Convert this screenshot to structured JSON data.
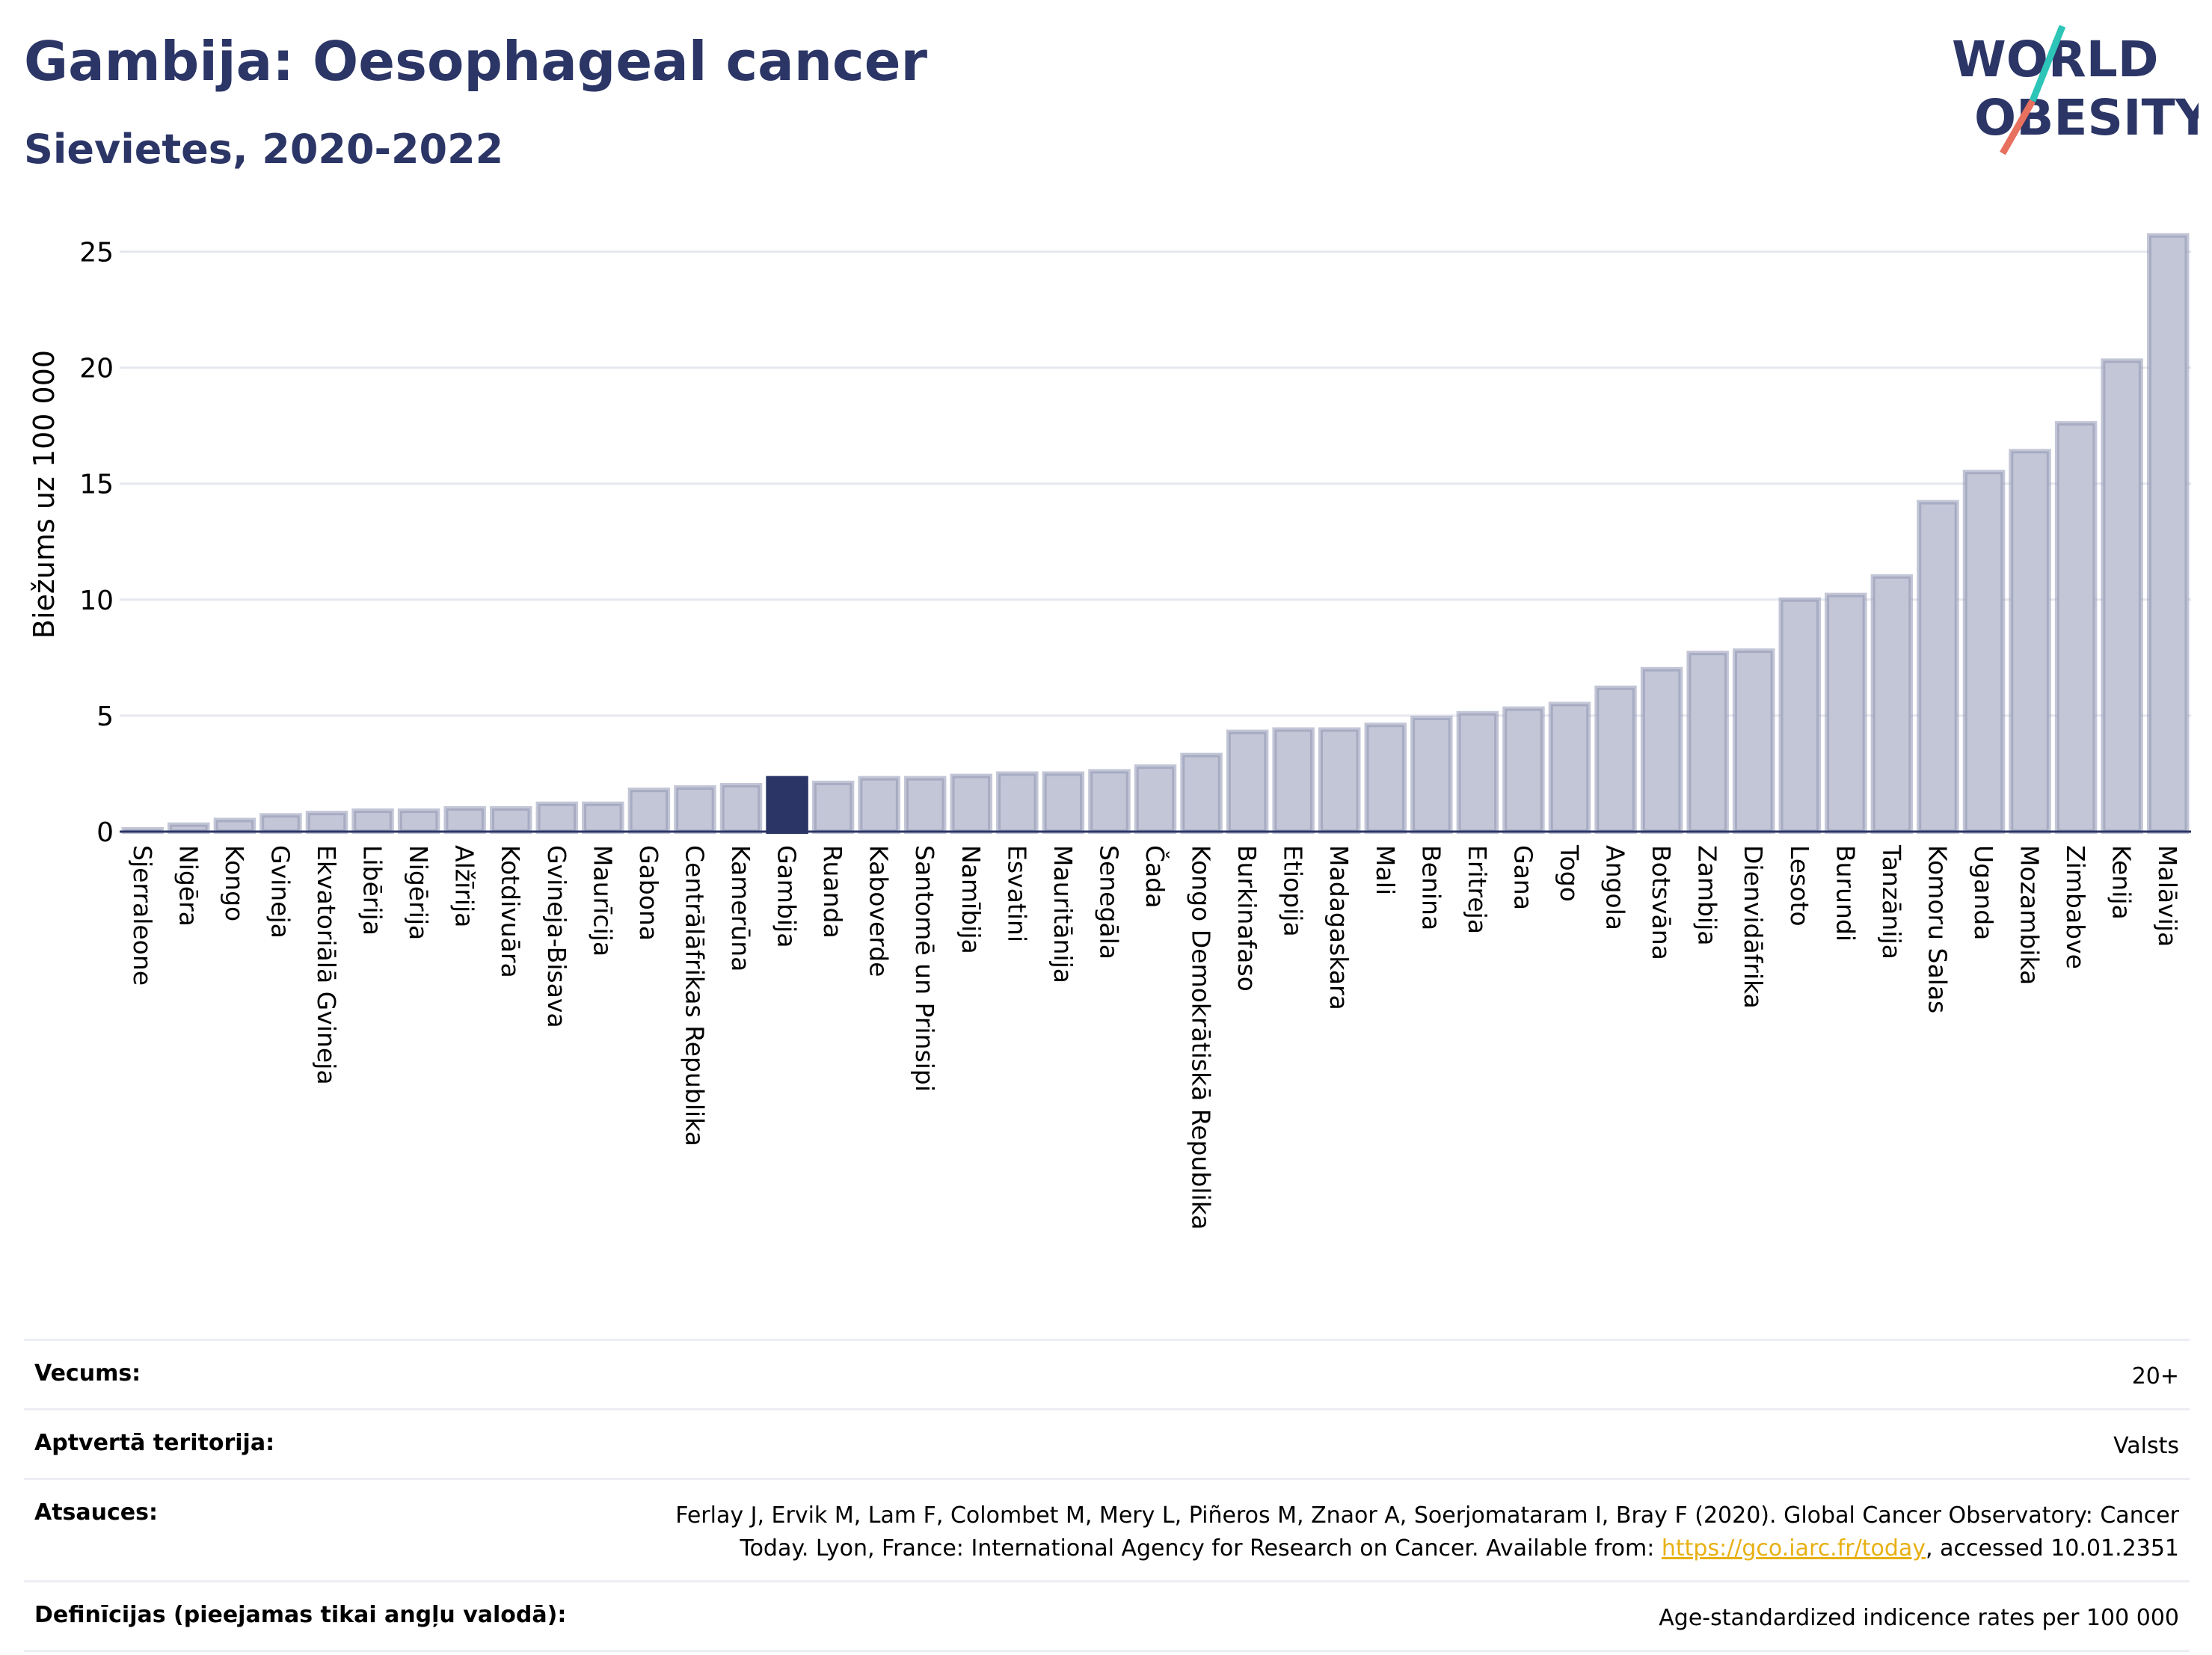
{
  "header": {
    "title": "Gambija: Oesophageal cancer",
    "subtitle": "Sievietes, 2020-2022",
    "logo_line1": "WORLD",
    "logo_line2": "OBESITY"
  },
  "colors": {
    "bar": "#c2c6d6",
    "bar_stroke": "#9298b5",
    "highlight": "#2b3566",
    "text": "#2b3566",
    "grid": "#e6e8ef",
    "logo_teal": "#2cc5b7",
    "logo_red": "#e8705f"
  },
  "chart_data": {
    "type": "bar",
    "ylabel": "Biežums uz 100 000",
    "ylim": [
      0,
      26.5
    ],
    "yticks": [
      0,
      5,
      10,
      15,
      20,
      25
    ],
    "grid": true,
    "highlight": "Gambija",
    "categories": [
      "Sjerraleone",
      "Nigēra",
      "Kongo",
      "Gvineja",
      "Ekvatoriālā Gvineja",
      "Libērija",
      "Nigērija",
      "Alžīrija",
      "Kotdivuāra",
      "Gvineja-Bisava",
      "Maurīcija",
      "Gabona",
      "Centrālāfrikas Republika",
      "Kamerūna",
      "Gambija",
      "Ruanda",
      "Kaboverde",
      "Santomē un Prinsipi",
      "Namībija",
      "Esvatini",
      "Mauritānija",
      "Senegāla",
      "Čada",
      "Kongo Demokrātiskā Republika",
      "Burkinafaso",
      "Etiopija",
      "Madagaskara",
      "Mali",
      "Benina",
      "Eritreja",
      "Gana",
      "Togo",
      "Angola",
      "Botsvāna",
      "Zambija",
      "Dienvidāfrika",
      "Lesoto",
      "Burundi",
      "Tanzānija",
      "Komoru Salas",
      "Uganda",
      "Mozambika",
      "Zimbabve",
      "Kenija",
      "Malāvija"
    ],
    "values": [
      0.1,
      0.3,
      0.5,
      0.7,
      0.8,
      0.9,
      0.9,
      1.0,
      1.0,
      1.2,
      1.2,
      1.8,
      1.9,
      2.0,
      2.3,
      2.1,
      2.3,
      2.3,
      2.4,
      2.5,
      2.5,
      2.6,
      2.8,
      3.3,
      4.3,
      4.4,
      4.4,
      4.6,
      4.9,
      5.1,
      5.3,
      5.5,
      6.2,
      7.0,
      7.7,
      7.8,
      10.0,
      10.2,
      11.0,
      14.2,
      15.5,
      16.4,
      17.6,
      20.3,
      25.7
    ]
  },
  "meta": {
    "age_label": "Vecums:",
    "age_value": "20+",
    "territory_label": "Aptvertā teritorija:",
    "territory_value": "Valsts",
    "references_label": "Atsauces:",
    "references_text_1": "Ferlay J, Ervik M, Lam F, Colombet M, Mery L, Piñeros M, Znaor A, Soerjomataram I, Bray F (2020). Global Cancer Observatory: Cancer",
    "references_text_2": "Today. Lyon, France: International Agency for Research on Cancer. Available from: ",
    "references_link": "https://gco.iarc.fr/today",
    "references_text_3": ", accessed 10.01.2351",
    "definitions_label": "Definīcijas (pieejamas tikai angļu valodā):",
    "definitions_value": "Age-standardized indicence rates per 100 000"
  }
}
